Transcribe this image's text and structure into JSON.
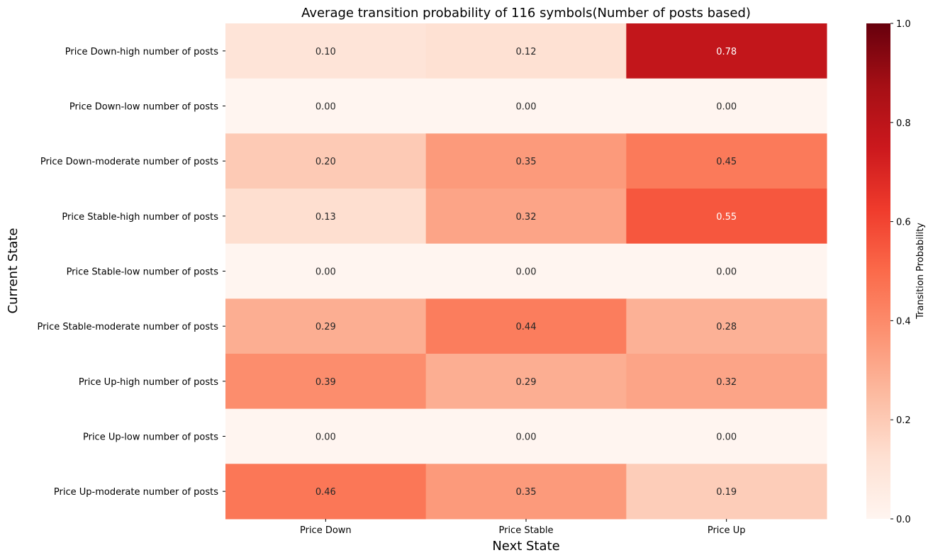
{
  "chart_data": {
    "type": "heatmap",
    "title": "Average transition probability of 116 symbols(Number of posts based)",
    "xlabel": "Next State",
    "ylabel": "Current State",
    "x_categories": [
      "Price Down",
      "Price Stable",
      "Price Up"
    ],
    "y_categories": [
      "Price Down-high number of posts",
      "Price Down-low number of posts",
      "Price Down-moderate number of posts",
      "Price Stable-high number of posts",
      "Price Stable-low number of posts",
      "Price Stable-moderate number of posts",
      "Price Up-high number of posts",
      "Price Up-low number of posts",
      "Price Up-moderate number of posts"
    ],
    "values": [
      [
        0.1,
        0.12,
        0.78
      ],
      [
        0.0,
        0.0,
        0.0
      ],
      [
        0.2,
        0.35,
        0.45
      ],
      [
        0.13,
        0.32,
        0.55
      ],
      [
        0.0,
        0.0,
        0.0
      ],
      [
        0.29,
        0.44,
        0.28
      ],
      [
        0.39,
        0.29,
        0.32
      ],
      [
        0.0,
        0.0,
        0.0
      ],
      [
        0.46,
        0.35,
        0.19
      ]
    ],
    "value_format": "0.00",
    "colormap": "Reds",
    "vmin": 0.0,
    "vmax": 1.0,
    "colorbar": {
      "label": "Transition Probability",
      "ticks": [
        "0.0",
        "0.2",
        "0.4",
        "0.6",
        "0.8",
        "1.0"
      ],
      "tick_values": [
        0.0,
        0.2,
        0.4,
        0.6,
        0.8,
        1.0
      ]
    },
    "grid": false,
    "legend": "colorbar-right"
  }
}
